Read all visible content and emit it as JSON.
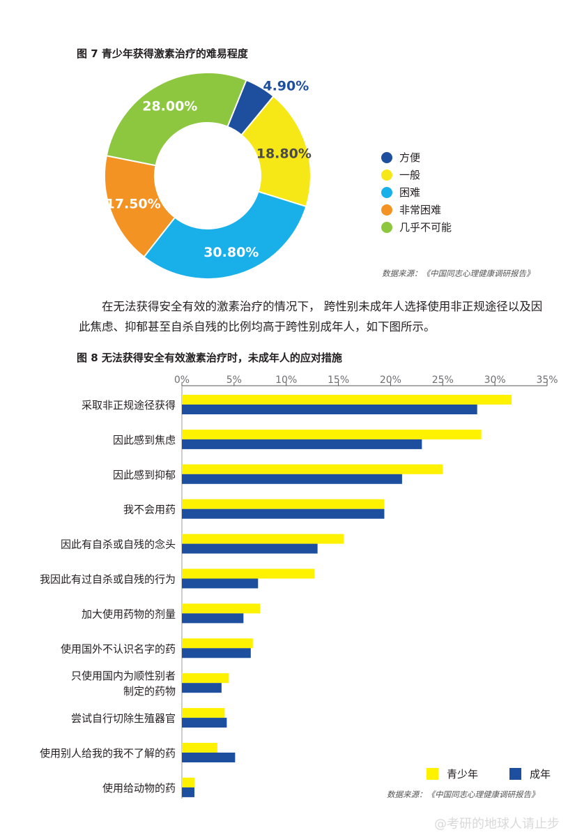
{
  "fig7": {
    "title": "图 7 青少年获得激素治疗的难易程度",
    "source": "数据来源：《中国同志心理健康调研报告》",
    "chart_data": {
      "type": "pie",
      "style": "donut",
      "labels": [
        "方便",
        "一般",
        "困难",
        "非常困难",
        "几乎不可能"
      ],
      "values": [
        4.9,
        18.8,
        30.8,
        17.5,
        28.0
      ],
      "data_labels": [
        "4.90%",
        "18.80%",
        "30.80%",
        "17.50%",
        "28.00%"
      ],
      "colors": [
        "#1d4f9e",
        "#f6e716",
        "#19b0ea",
        "#f39324",
        "#8dc63f"
      ],
      "legend_position": "right"
    }
  },
  "paragraph": "在无法获得安全有效的激素治疗的情况下， 跨性别未成年人选择使用非正规途径以及因此焦虑、抑郁甚至自杀自残的比例均高于跨性别成年人，如下图所示。",
  "fig8": {
    "title": "图 8 无法获得安全有效激素治疗时，未成年人的应对措施",
    "source": "数据来源：《中国同志心理健康调研报告》",
    "chart_data": {
      "type": "bar",
      "orientation": "horizontal",
      "categories": [
        "采取非正规途径获得",
        "因此感到焦虑",
        "因此感到抑郁",
        "我不会用药",
        "因此有自杀或自残的念头",
        "我因此有过自杀或自残的行为",
        "加大使用药物的剂量",
        "使用国外不认识名字的药",
        "只使用国内为顺性别者|制定的药物",
        "尝试自行切除生殖器官",
        "使用别人给我的我不了解的药",
        "使用给动物的药"
      ],
      "series": [
        {
          "name": "青少年",
          "color": "#fff200",
          "values": [
            31.6,
            28.7,
            25.0,
            19.4,
            15.5,
            12.7,
            7.5,
            6.8,
            4.5,
            4.1,
            3.4,
            1.2
          ]
        },
        {
          "name": "成年",
          "color": "#1d4f9e",
          "values": [
            28.3,
            23.0,
            21.1,
            19.4,
            13.0,
            7.3,
            5.9,
            6.6,
            3.8,
            4.3,
            5.1,
            1.2
          ]
        }
      ],
      "xlim": [
        0,
        35
      ],
      "ticks": [
        "0%",
        "5%",
        "10%",
        "15%",
        "20%",
        "25%",
        "30%",
        "35%"
      ],
      "tick_values": [
        0,
        5,
        10,
        15,
        20,
        25,
        30,
        35
      ],
      "grid": false,
      "legend_position": "bottom-right"
    }
  },
  "watermark": "@考研的地球人请止步"
}
